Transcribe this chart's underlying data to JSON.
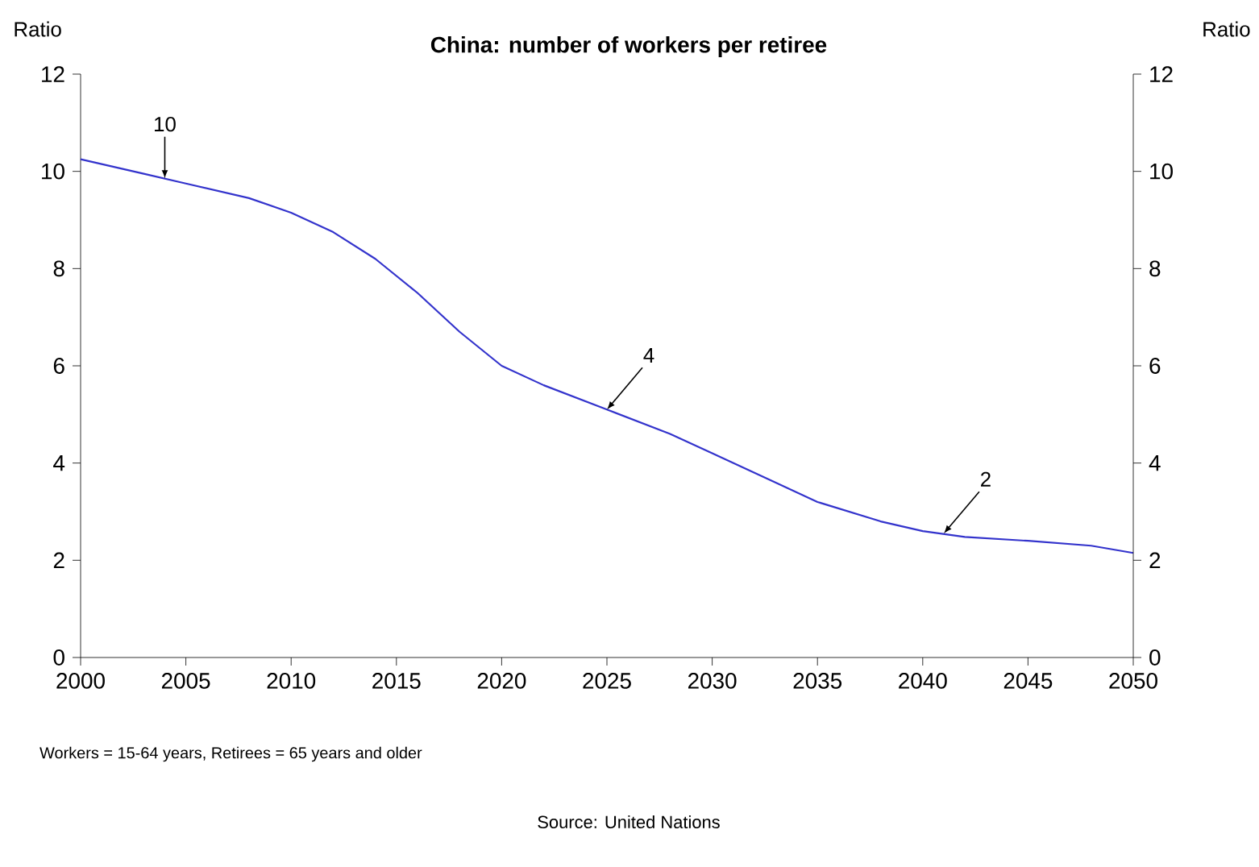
{
  "chart_data": {
    "type": "line",
    "title": "China: number of workers per retiree",
    "ylabel": "Ratio",
    "y2label": "Ratio",
    "x": [
      2000,
      2003,
      2005,
      2008,
      2010,
      2012,
      2014,
      2016,
      2018,
      2020,
      2022,
      2025,
      2028,
      2030,
      2033,
      2035,
      2038,
      2040,
      2042,
      2045,
      2048,
      2050
    ],
    "series": [
      {
        "color": "#3333cc",
        "values": [
          10.25,
          9.95,
          9.75,
          9.45,
          9.15,
          8.75,
          8.2,
          7.5,
          6.7,
          6.0,
          5.6,
          5.1,
          4.6,
          4.2,
          3.6,
          3.2,
          2.8,
          2.6,
          2.48,
          2.4,
          2.3,
          2.15
        ]
      }
    ],
    "xlim": [
      2000,
      2050
    ],
    "xticks": [
      2000,
      2005,
      2010,
      2015,
      2020,
      2025,
      2030,
      2035,
      2040,
      2045,
      2050
    ],
    "ylim": [
      0,
      12
    ],
    "yticks": [
      0,
      2,
      4,
      6,
      8,
      10,
      12
    ],
    "y2lim": [
      0,
      12
    ],
    "y2ticks": [
      0,
      2,
      4,
      6,
      8,
      10,
      12
    ],
    "grid": false,
    "marker": "none",
    "line_style": "solid",
    "annotations": [
      {
        "text": "10",
        "x": 2004,
        "y": 9.85
      },
      {
        "text": "4",
        "x": 2025,
        "y": 5.1
      },
      {
        "text": "2",
        "x": 2041,
        "y": 2.55
      },
      "Workers = 15-64 years, Retirees = 65 years and older",
      "Source: United Nations"
    ]
  }
}
